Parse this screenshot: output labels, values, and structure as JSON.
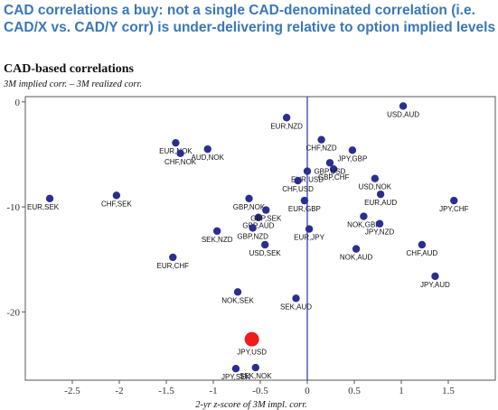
{
  "headline": "CAD correlations a buy: not a single CAD-denominated correlation (i.e. CAD/X vs. CAD/Y corr) is under-delivering relative to option implied levels",
  "chart_data": {
    "type": "scatter",
    "title": "CAD-based correlations",
    "subtitle": "3M implied corr. – 3M realized corr.",
    "xlabel": "2-yr z-score of 3M impl. corr.",
    "ylabel": "",
    "xlim": [
      -3.0,
      2.0
    ],
    "ylim": [
      -26.5,
      0.5
    ],
    "xticks": [
      "-2.5",
      "-2",
      "-1.5",
      "-1",
      "-0.5",
      "0",
      "0.5",
      "1",
      "1.5"
    ],
    "xtick_values": [
      -2.5,
      -2,
      -1.5,
      -1,
      -0.5,
      0,
      0.5,
      1,
      1.5
    ],
    "yticks": [
      "0",
      "-10",
      "-20"
    ],
    "ytick_values": [
      0,
      -10,
      -20
    ],
    "reference_line_x": 0,
    "point_color": "#2a2f8f",
    "highlight_color": "#ee1c1c",
    "points": [
      {
        "x": -2.74,
        "y": -9.2,
        "label": "EUR,SEK"
      },
      {
        "x": -2.03,
        "y": -8.9,
        "label": "CHF,SEK"
      },
      {
        "x": -1.4,
        "y": -3.9,
        "label": "EUR,NOK"
      },
      {
        "x": -1.35,
        "y": -4.9,
        "label": "CHF,NOK"
      },
      {
        "x": -1.06,
        "y": -4.5,
        "label": "AUD,NOK"
      },
      {
        "x": -1.43,
        "y": -14.8,
        "label": "EUR,CHF"
      },
      {
        "x": -0.96,
        "y": -12.3,
        "label": "SEK,NZD"
      },
      {
        "x": -0.62,
        "y": -9.2,
        "label": "GBP,NOK"
      },
      {
        "x": -0.52,
        "y": -11.0,
        "label": "GBP,AUD"
      },
      {
        "x": -0.58,
        "y": -12.0,
        "label": "GBP,NZD"
      },
      {
        "x": -0.44,
        "y": -10.3,
        "label": "GBP,SEK"
      },
      {
        "x": -0.45,
        "y": -13.6,
        "label": "USD,SEK"
      },
      {
        "x": -0.22,
        "y": -1.5,
        "label": "EUR,NZD"
      },
      {
        "x": 0.15,
        "y": -3.6,
        "label": "CHF,NZD"
      },
      {
        "x": 0.48,
        "y": -4.6,
        "label": "JPY,GBP"
      },
      {
        "x": 0.28,
        "y": -6.4,
        "label": "GBP,CHF"
      },
      {
        "x": 0.24,
        "y": -5.8,
        "label": "GBP,USD"
      },
      {
        "x": 0.0,
        "y": -6.6,
        "label": "EUR,USD"
      },
      {
        "x": -0.1,
        "y": -7.5,
        "label": "CHF,USD"
      },
      {
        "x": -0.03,
        "y": -9.4,
        "label": "EUR,GBP"
      },
      {
        "x": 0.02,
        "y": -12.1,
        "label": "EUR,JPY"
      },
      {
        "x": -0.12,
        "y": -18.7,
        "label": "SEK,AUD"
      },
      {
        "x": -0.74,
        "y": -18.1,
        "label": "NOK,SEK"
      },
      {
        "x": 1.02,
        "y": -0.4,
        "label": "USD,AUD"
      },
      {
        "x": 0.72,
        "y": -7.3,
        "label": "USD,NOK"
      },
      {
        "x": 0.78,
        "y": -8.8,
        "label": "EUR,AUD"
      },
      {
        "x": 0.6,
        "y": -10.9,
        "label": "NOK,GBP"
      },
      {
        "x": 0.77,
        "y": -11.6,
        "label": "JPY,NZD"
      },
      {
        "x": 0.52,
        "y": -14.0,
        "label": "NOK,AUD"
      },
      {
        "x": 1.22,
        "y": -13.6,
        "label": "CHF,AUD"
      },
      {
        "x": 1.56,
        "y": -9.4,
        "label": "JPY,CHF"
      },
      {
        "x": 1.36,
        "y": -16.6,
        "label": "JPY,AUD"
      },
      {
        "x": -0.76,
        "y": -25.4,
        "label": "JPY,SEK"
      },
      {
        "x": -0.55,
        "y": -25.3,
        "label": "SEK,NOK"
      }
    ],
    "highlight": {
      "x": -0.59,
      "y": -22.6,
      "label": "JPY,USD"
    }
  }
}
